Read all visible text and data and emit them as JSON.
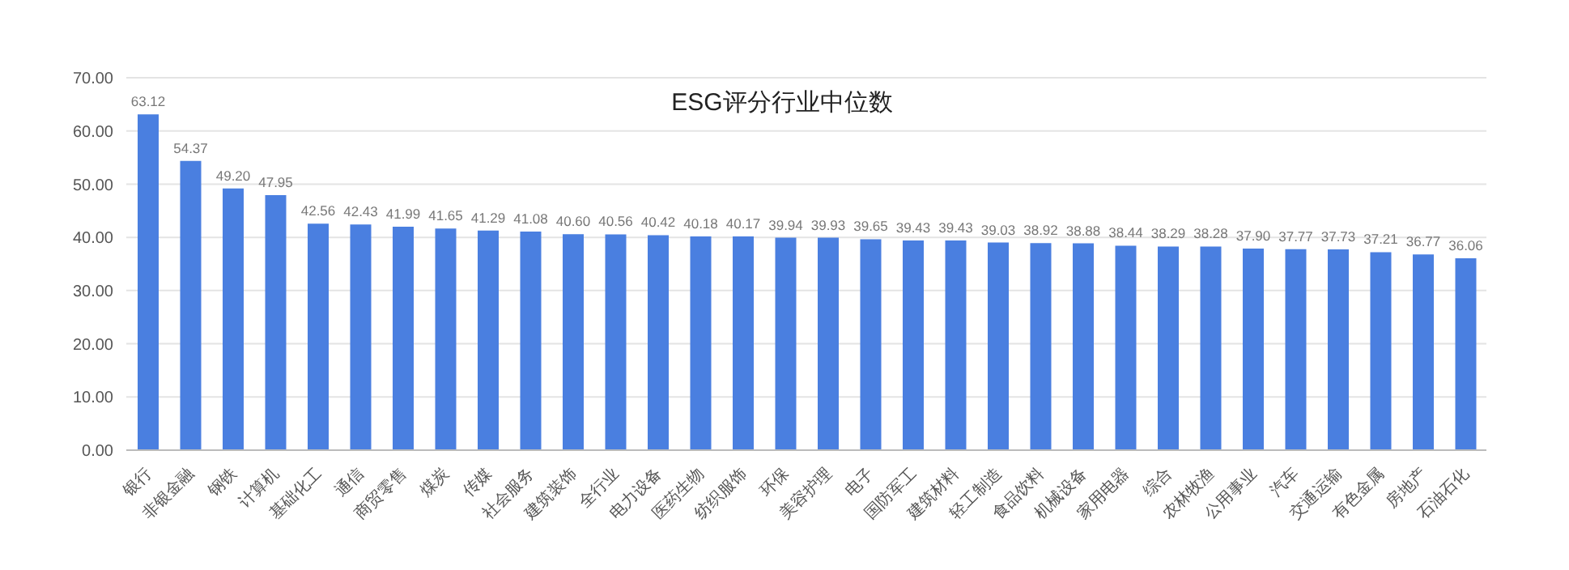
{
  "chart_data": {
    "type": "bar",
    "title": "ESG评分行业中位数",
    "categories": [
      "银行",
      "非银金融",
      "钢铁",
      "计算机",
      "基础化工",
      "通信",
      "商贸零售",
      "煤炭",
      "传媒",
      "社会服务",
      "建筑装饰",
      "全行业",
      "电力设备",
      "医药生物",
      "纺织服饰",
      "环保",
      "美容护理",
      "电子",
      "国防军工",
      "建筑材料",
      "轻工制造",
      "食品饮料",
      "机械设备",
      "家用电器",
      "综合",
      "农林牧渔",
      "公用事业",
      "汽车",
      "交通运输",
      "有色金属",
      "房地产",
      "石油石化"
    ],
    "values": [
      63.12,
      54.37,
      49.2,
      47.95,
      42.56,
      42.43,
      41.99,
      41.65,
      41.29,
      41.08,
      40.6,
      40.56,
      40.42,
      40.18,
      40.17,
      39.94,
      39.93,
      39.65,
      39.43,
      39.43,
      39.03,
      38.92,
      38.88,
      38.44,
      38.29,
      38.28,
      37.9,
      37.77,
      37.73,
      37.21,
      36.77,
      36.06
    ],
    "value_labels": [
      "63.12",
      "54.37",
      "49.20",
      "47.95",
      "42.56",
      "42.43",
      "41.99",
      "41.65",
      "41.29",
      "41.08",
      "40.60",
      "40.56",
      "40.42",
      "40.18",
      "40.17",
      "39.94",
      "39.93",
      "39.65",
      "39.43",
      "39.43",
      "39.03",
      "38.92",
      "38.88",
      "38.44",
      "38.29",
      "38.28",
      "37.90",
      "37.77",
      "37.73",
      "37.21",
      "36.77",
      "36.06"
    ],
    "color": "#4a7fe0",
    "ylim": [
      0,
      70
    ],
    "yticks": [
      {
        "value": 0,
        "label": "0.00"
      },
      {
        "value": 10,
        "label": "10.00"
      },
      {
        "value": 20,
        "label": "20.00"
      },
      {
        "value": 30,
        "label": "30.00"
      },
      {
        "value": 40,
        "label": "40.00"
      },
      {
        "value": 50,
        "label": "50.00"
      },
      {
        "value": 60,
        "label": "60.00"
      },
      {
        "value": 70,
        "label": "70.00"
      }
    ],
    "grid": "y"
  }
}
